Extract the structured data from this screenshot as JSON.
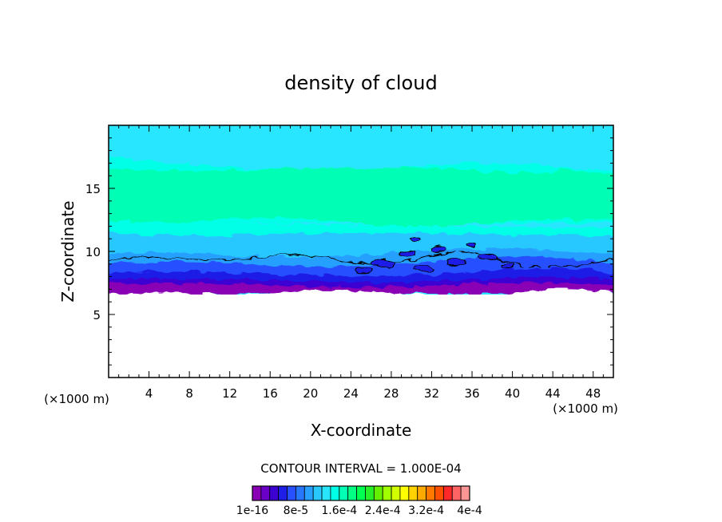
{
  "chart_data": {
    "type": "heatmap",
    "title": "density of cloud",
    "xlabel": "X-coordinate",
    "ylabel": "Z-coordinate",
    "x_unit": "(×1000 m)",
    "z_unit": "(×1000 m)",
    "xlim": [
      0,
      50
    ],
    "ylim": [
      0,
      20
    ],
    "x_ticks": [
      4,
      8,
      12,
      16,
      20,
      24,
      28,
      32,
      36,
      40,
      44,
      48
    ],
    "y_ticks": [
      5,
      10,
      15
    ],
    "cloud_base_km": 7.0,
    "cloud_top_km": 20.0,
    "contour_interval_text": "CONTOUR INTERVAL = 1.000E-04",
    "colorbar": {
      "colors": [
        "#8a00b4",
        "#6a00c8",
        "#3c00d2",
        "#1e1ee6",
        "#2850ff",
        "#2878ff",
        "#28a0ff",
        "#28c8ff",
        "#28e6ff",
        "#00ffe6",
        "#00ffb4",
        "#00ff82",
        "#00ff50",
        "#28f028",
        "#64f000",
        "#a0ff00",
        "#d2ff00",
        "#ffff00",
        "#ffd200",
        "#ffaa00",
        "#ff7800",
        "#ff5000",
        "#ff2828",
        "#ff6464",
        "#ff9696"
      ],
      "labels": [
        "1e-16",
        "8e-5",
        "1.6e-4",
        "2.4e-4",
        "3.2e-4",
        "4e-4"
      ]
    }
  }
}
